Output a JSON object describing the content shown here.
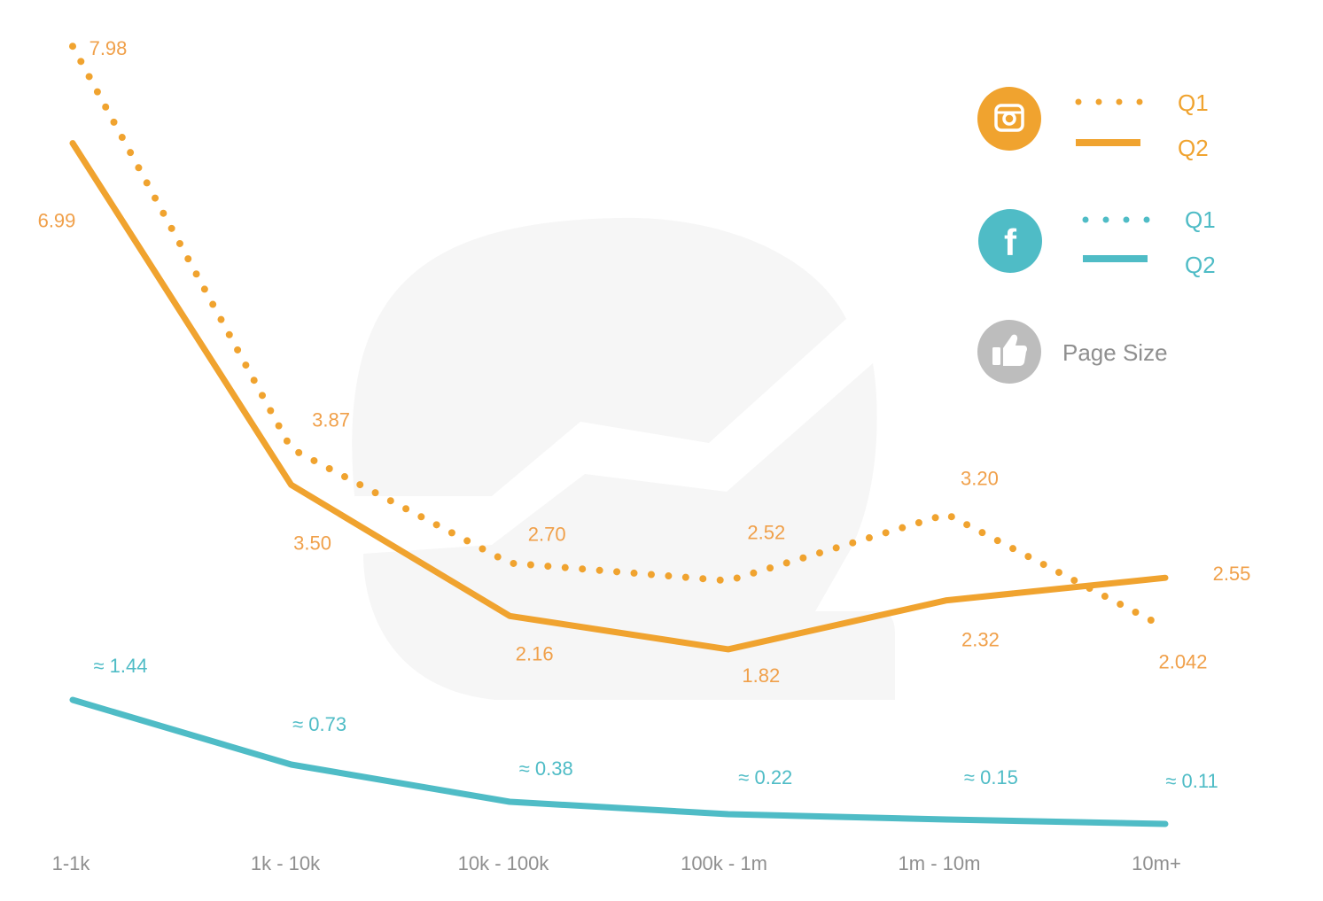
{
  "chart_data": {
    "type": "line",
    "categories": [
      "1-1k",
      "1k - 10k",
      "10k - 100k",
      "100k - 1m",
      "1m - 10m",
      "10m+"
    ],
    "series": [
      {
        "platform": "instagram",
        "name": "Q1",
        "style": "dotted",
        "color": "#F0A32F",
        "values": [
          7.98,
          3.87,
          2.7,
          2.52,
          3.2,
          2.042
        ],
        "labels": [
          "7.98",
          "3.87",
          "2.70",
          "2.52",
          "3.20",
          "2.042"
        ]
      },
      {
        "platform": "instagram",
        "name": "Q2",
        "style": "solid",
        "color": "#F0A32F",
        "values": [
          6.99,
          3.5,
          2.16,
          1.82,
          2.32,
          2.55
        ],
        "labels": [
          "6.99",
          "3.50",
          "2.16",
          "1.82",
          "2.32",
          "2.55"
        ]
      },
      {
        "platform": "facebook",
        "name": "Q1",
        "style": "dotted",
        "color": "#4FBCC6",
        "values": [
          1.44,
          0.73,
          0.38,
          0.22,
          0.15,
          0.11
        ]
      },
      {
        "platform": "facebook",
        "name": "Q2",
        "style": "solid",
        "color": "#4FBCC6",
        "values": [
          1.44,
          0.73,
          0.38,
          0.22,
          0.15,
          0.11
        ],
        "labels": [
          "≈ 1.44",
          "≈ 0.73",
          "≈ 0.38",
          "≈ 0.22",
          "≈ 0.15",
          "≈ 0.11"
        ]
      }
    ],
    "grid": false,
    "legend_position": "top-right",
    "xlabel": "",
    "ylabel": ""
  },
  "legend": {
    "instagram": {
      "icon": "instagram-icon",
      "color": "#F0A32F",
      "q1_label": "Q1",
      "q2_label": "Q2"
    },
    "facebook": {
      "icon": "facebook-icon",
      "color": "#4FBCC6",
      "q1_label": "Q1",
      "q2_label": "Q2"
    },
    "page_size": {
      "icon": "thumbs-up-icon",
      "color": "#BDBDBD",
      "label": "Page Size"
    }
  },
  "colors": {
    "orange": "#F0A32F",
    "orange_text": "#F0A04A",
    "teal": "#4FBCC6",
    "tick": "#8F8F8F",
    "watermark": "#F6F6F6"
  }
}
